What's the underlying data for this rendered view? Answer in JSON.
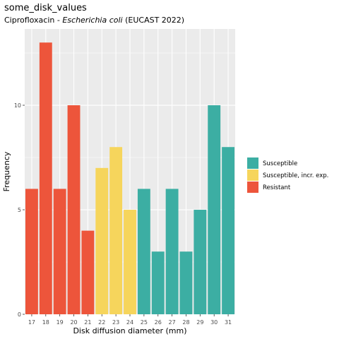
{
  "chart_data": {
    "type": "bar",
    "title": "some_disk_values",
    "subtitle_prefix": "Ciprofloxacin - ",
    "subtitle_italic": "Escherichia coli",
    "subtitle_suffix": " (EUCAST 2022)",
    "xlabel": "Disk diffusion diameter (mm)",
    "ylabel": "Frequency",
    "categories": [
      "17",
      "18",
      "19",
      "20",
      "21",
      "22",
      "23",
      "24",
      "25",
      "26",
      "27",
      "28",
      "29",
      "30",
      "31"
    ],
    "values": [
      6,
      13,
      6,
      10,
      4,
      7,
      8,
      5,
      6,
      3,
      6,
      3,
      5,
      10,
      8
    ],
    "classes": [
      "R",
      "R",
      "R",
      "R",
      "R",
      "I",
      "I",
      "I",
      "S",
      "S",
      "S",
      "S",
      "S",
      "S",
      "S"
    ],
    "ylim": [
      0,
      13.65
    ],
    "yticks": [
      0,
      5,
      10
    ],
    "grid": true,
    "legend": {
      "placement": "right",
      "entries": [
        {
          "key": "S",
          "label": "Susceptible",
          "color": "#3CAEA3"
        },
        {
          "key": "I",
          "label": "Susceptible, incr. exp.",
          "color": "#F6D55C"
        },
        {
          "key": "R",
          "label": "Resistant",
          "color": "#ED553B"
        }
      ]
    },
    "panel_color": "#EBEBEB"
  }
}
